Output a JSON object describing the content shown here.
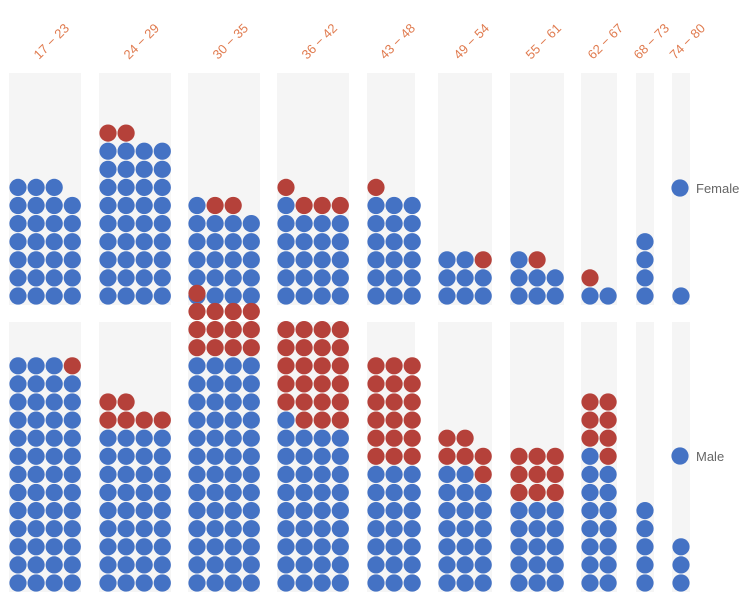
{
  "chart_data": {
    "type": "waffle",
    "x_categories": [
      "17 − 23",
      "24 − 29",
      "30 − 35",
      "36 − 42",
      "43 − 48",
      "49 − 54",
      "55 − 61",
      "62 − 67",
      "68 − 73",
      "74 − 80"
    ],
    "rows": [
      {
        "label": "Female",
        "counts": [
          {
            "blue": 27,
            "red": 0
          },
          {
            "blue": 36,
            "red": 2
          },
          {
            "blue": 21,
            "red": 2
          },
          {
            "blue": 21,
            "red": 4
          },
          {
            "blue": 18,
            "red": 1
          },
          {
            "blue": 8,
            "red": 1
          },
          {
            "blue": 7,
            "red": 1
          },
          {
            "blue": 2,
            "red": 1
          },
          {
            "blue": 4,
            "red": 0
          },
          {
            "blue": 1,
            "red": 0
          }
        ]
      },
      {
        "label": "Male",
        "counts": [
          {
            "blue": 51,
            "red": 1
          },
          {
            "blue": 36,
            "red": 6
          },
          {
            "blue": 52,
            "red": 13
          },
          {
            "blue": 37,
            "red": 23
          },
          {
            "blue": 21,
            "red": 18
          },
          {
            "blue": 20,
            "red": 6
          },
          {
            "blue": 15,
            "red": 9
          },
          {
            "blue": 15,
            "red": 7
          },
          {
            "blue": 5,
            "red": 0
          },
          {
            "blue": 3,
            "red": 0
          }
        ]
      }
    ],
    "colors": {
      "blue": "#4472c4",
      "red": "#b5413a",
      "panel": "#f5f5f5",
      "age_label": "#e07b4f",
      "row_label": "#666666"
    }
  }
}
